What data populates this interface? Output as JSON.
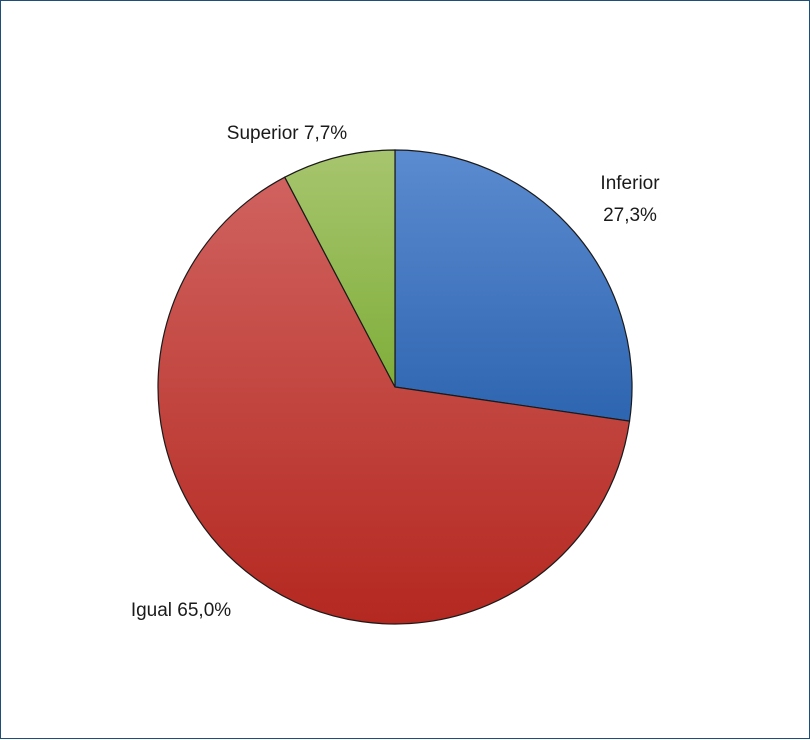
{
  "chart_data": {
    "type": "pie",
    "title": "",
    "slices": [
      {
        "label": "Inferior",
        "value": 27.3,
        "display": "27,3%",
        "color": "#3F77BF"
      },
      {
        "label": "Igual",
        "value": 65.0,
        "display": "65,0%",
        "color": "#C0392F"
      },
      {
        "label": "Superior",
        "value": 7.7,
        "display": "7,7%",
        "color": "#8BB346"
      }
    ],
    "labels": {
      "inferior_line1": "Inferior",
      "inferior_line2": "27,3%",
      "igual": "Igual 65,0%",
      "superior": "Superior 7,7%"
    },
    "start_angle_deg": 0,
    "direction": "clockwise",
    "legend": "none"
  }
}
